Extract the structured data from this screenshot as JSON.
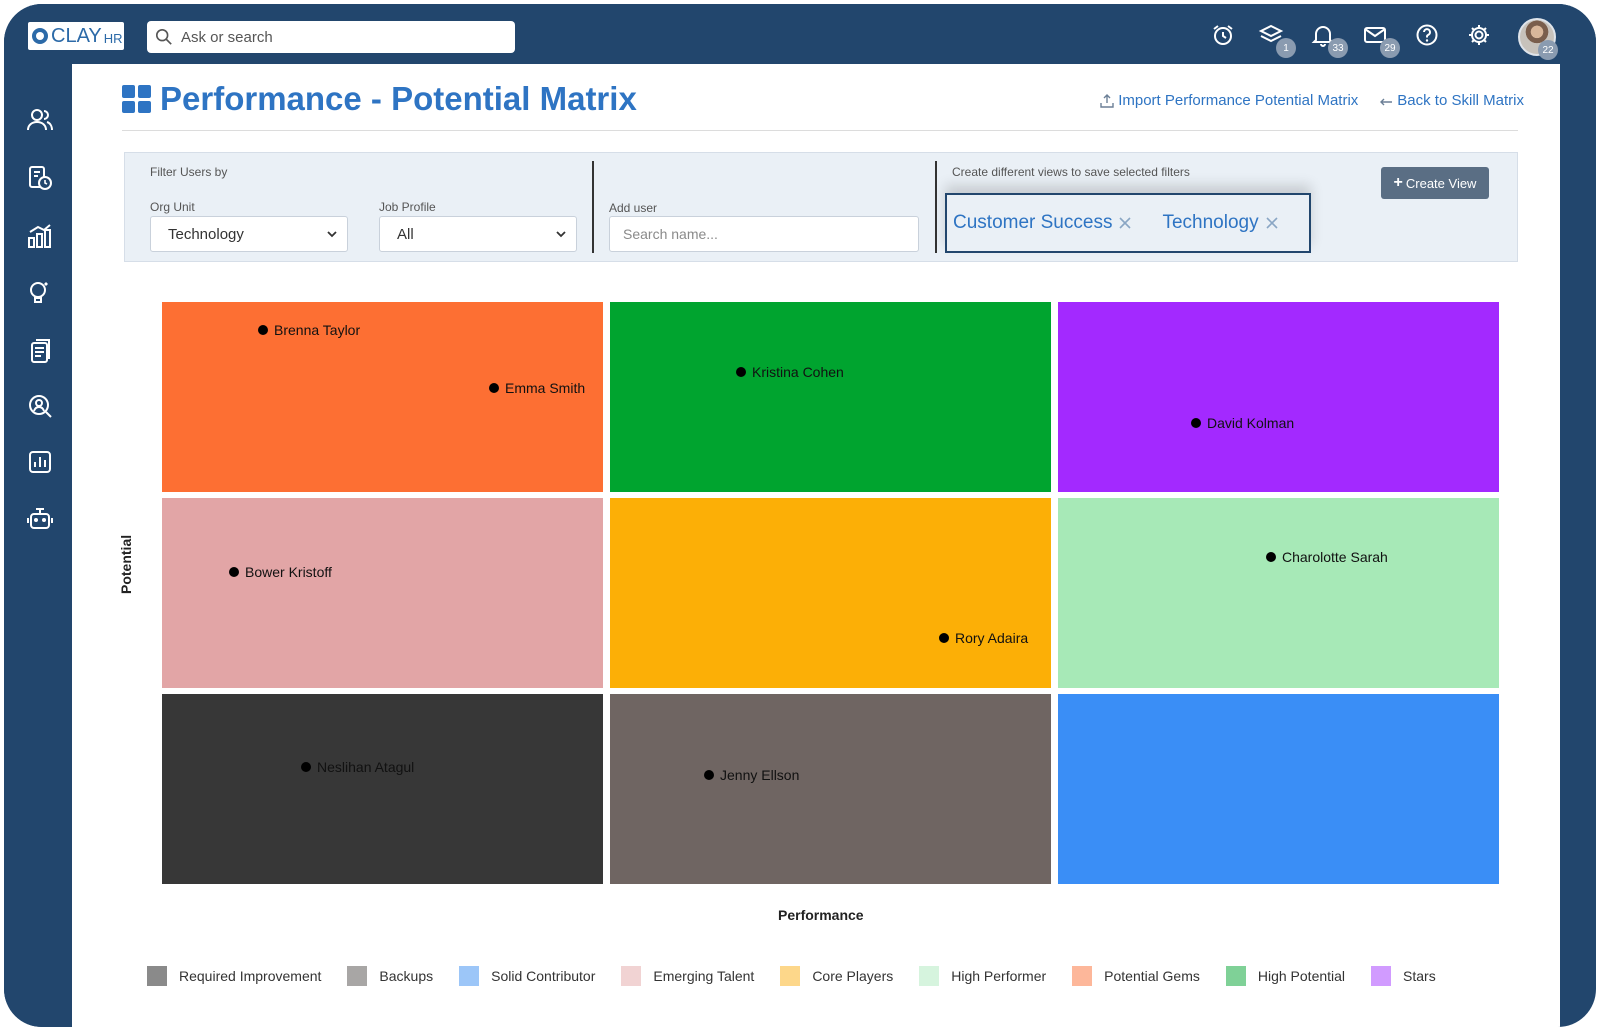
{
  "app": {
    "logo_text": "CLAY",
    "logo_suffix": "HR"
  },
  "search": {
    "placeholder": "Ask or search"
  },
  "topbar": {
    "icons": [
      {
        "name": "alarm-icon",
        "badge": ""
      },
      {
        "name": "layers-icon",
        "badge": "1"
      },
      {
        "name": "bell-icon",
        "badge": "33"
      },
      {
        "name": "mail-icon",
        "badge": "29"
      },
      {
        "name": "help-icon",
        "badge": ""
      },
      {
        "name": "gear-icon",
        "badge": ""
      }
    ],
    "avatar_badge": "22"
  },
  "sidebar": {
    "items": [
      "people-icon",
      "payroll-icon",
      "analytics-icon",
      "ideas-icon",
      "documents-icon",
      "search-person-icon",
      "reports-icon",
      "team-icon"
    ]
  },
  "page": {
    "title": "Performance - Potential Matrix",
    "import_link": "Import Performance Potential Matrix",
    "back_link": "Back to Skill Matrix"
  },
  "filters": {
    "heading": "Filter Users by",
    "org_unit_label": "Org Unit",
    "org_unit_value": "Technology",
    "job_profile_label": "Job Profile",
    "job_profile_value": "All",
    "add_user_label": "Add user",
    "add_user_placeholder": "Search name...",
    "views_hint": "Create different views to save selected filters",
    "views": [
      "Customer Success",
      "Technology"
    ],
    "create_view_label": "Create View"
  },
  "matrix": {
    "y_label": "Potential",
    "x_label": "Performance",
    "cells": [
      {
        "category": "Potential Gems",
        "color": "#fd6f33",
        "people": [
          "Brenna Taylor",
          "Emma Smith"
        ]
      },
      {
        "category": "High Potential",
        "color": "#00a42f",
        "people": [
          "Kristina Cohen"
        ]
      },
      {
        "category": "Stars",
        "color": "#a329ff",
        "people": [
          "David Kolman"
        ]
      },
      {
        "category": "Emerging Talent",
        "color": "#e2a5a6",
        "people": [
          "Bower Kristoff"
        ]
      },
      {
        "category": "Core Players",
        "color": "#fcaf06",
        "people": [
          "Rory Adaira"
        ]
      },
      {
        "category": "High Performer",
        "color": "#a7e9b7",
        "people": [
          "Charolotte Sarah"
        ]
      },
      {
        "category": "Required Improvement",
        "color": "#373737",
        "people": [
          "Neslihan Atagul"
        ]
      },
      {
        "category": "Backups",
        "color": "#6f6562",
        "people": [
          "Jenny Ellson"
        ]
      },
      {
        "category": "Solid Contributor",
        "color": "#3a8ef6",
        "people": []
      }
    ]
  },
  "legend": [
    {
      "label": "Required Improvement",
      "color": "#8a8a8a"
    },
    {
      "label": "Backups",
      "color": "#a8a6a5"
    },
    {
      "label": "Solid Contributor",
      "color": "#9cc6f8"
    },
    {
      "label": "Emerging Talent",
      "color": "#f1d3d3"
    },
    {
      "label": "Core Players",
      "color": "#fdd78a"
    },
    {
      "label": "High Performer",
      "color": "#d6f4de"
    },
    {
      "label": "Potential Gems",
      "color": "#fdb79a"
    },
    {
      "label": "High Potential",
      "color": "#7fd197"
    },
    {
      "label": "Stars",
      "color": "#d19bff"
    }
  ]
}
